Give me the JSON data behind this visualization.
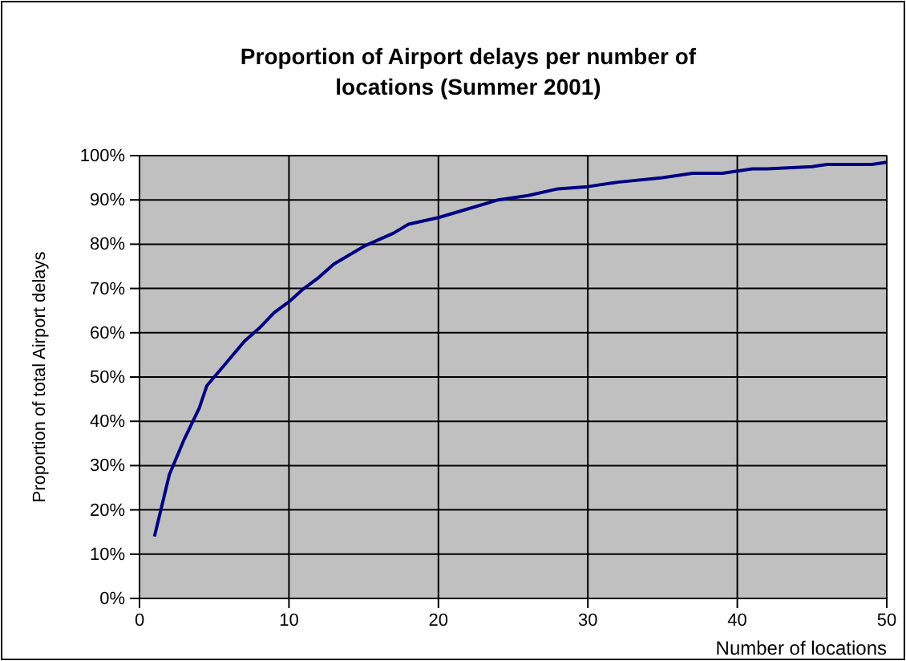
{
  "chart_data": {
    "type": "line",
    "title": "Proportion of Airport delays per number of locations (Summer 2001)",
    "xlabel": "Number of locations",
    "ylabel": "Proportion of total Airport delays",
    "x": [
      1,
      2,
      3,
      4,
      4.5,
      5,
      6,
      7,
      8,
      9,
      10,
      11,
      12,
      13,
      14,
      15,
      16,
      17,
      18,
      20,
      22,
      24,
      26,
      28,
      30,
      32,
      35,
      37,
      39,
      40,
      41,
      42,
      45,
      46,
      47,
      49,
      50
    ],
    "series": [
      {
        "color": "#000080",
        "values": [
          14,
          28,
          36,
          43,
          48,
          50,
          54,
          58,
          61,
          64.5,
          67,
          70,
          72.5,
          75.5,
          77.5,
          79.5,
          81,
          82.5,
          84.5,
          86,
          88,
          90,
          91,
          92.5,
          93,
          94,
          95,
          96,
          96,
          96.5,
          97,
          97,
          97.5,
          98,
          98,
          98,
          98.5
        ]
      }
    ],
    "xlim": [
      0,
      50
    ],
    "xticks": [
      0,
      10,
      20,
      30,
      40,
      50
    ],
    "ylim": [
      0,
      100
    ],
    "yticks": [
      {
        "value": 0,
        "label": "0%"
      },
      {
        "value": 10,
        "label": "10%"
      },
      {
        "value": 20,
        "label": "20%"
      },
      {
        "value": 30,
        "label": "30%"
      },
      {
        "value": 40,
        "label": "40%"
      },
      {
        "value": 50,
        "label": "50%"
      },
      {
        "value": 60,
        "label": "60%"
      },
      {
        "value": 70,
        "label": "70%"
      },
      {
        "value": 80,
        "label": "80%"
      },
      {
        "value": 90,
        "label": "90%"
      },
      {
        "value": 100,
        "label": "100%"
      }
    ],
    "grid": true,
    "marker": "none",
    "line_style": "solid"
  }
}
